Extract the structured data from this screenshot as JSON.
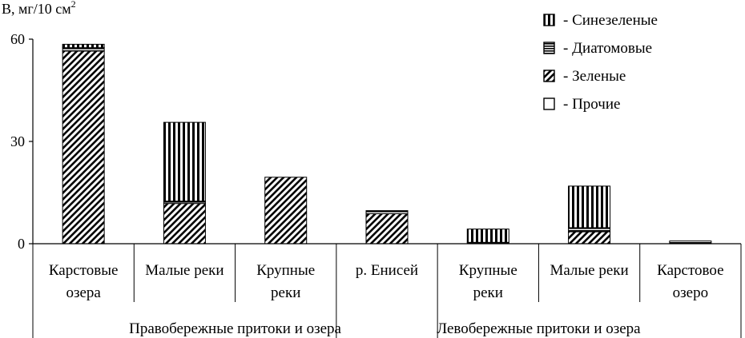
{
  "chart_data": {
    "type": "bar",
    "stacked": true,
    "ylabel": "В, мг/10 см",
    "ylabel_sup": "2",
    "ylim": [
      0,
      60
    ],
    "yticks": [
      0,
      30,
      60
    ],
    "categories": [
      [
        "Карстовые",
        "озера"
      ],
      [
        "Малые реки"
      ],
      [
        "Крупные",
        "реки"
      ],
      [
        "р. Енисей"
      ],
      [
        "Крупные",
        "реки"
      ],
      [
        "Малые реки"
      ],
      [
        "Карстовое",
        "озеро"
      ]
    ],
    "groups": [
      {
        "label": "Правобережные притоки и озера",
        "from": 0,
        "to": 3
      },
      {
        "label": "Левобережные притоки и озера",
        "from": 3,
        "to": 6
      }
    ],
    "series": [
      {
        "name": "Прочие",
        "pattern": "none",
        "values": [
          0,
          0,
          0,
          0,
          0,
          0,
          0
        ]
      },
      {
        "name": "Зеленые",
        "pattern": "diagonal",
        "values": [
          56.5,
          11.8,
          19.5,
          8.8,
          0,
          3.5,
          0
        ]
      },
      {
        "name": "Диатомовые",
        "pattern": "horizontal",
        "values": [
          1.0,
          0.7,
          0,
          0.8,
          0.4,
          1.2,
          0.8
        ]
      },
      {
        "name": "Синезеленые",
        "pattern": "vertical",
        "values": [
          1.0,
          23.1,
          0,
          0.1,
          3.9,
          12.2,
          0
        ]
      }
    ],
    "legend": {
      "position": "top-right",
      "order": [
        "Синезеленые",
        "Диатомовые",
        "Зеленые",
        "Прочие"
      ],
      "prefix": "- "
    },
    "grid": false
  }
}
